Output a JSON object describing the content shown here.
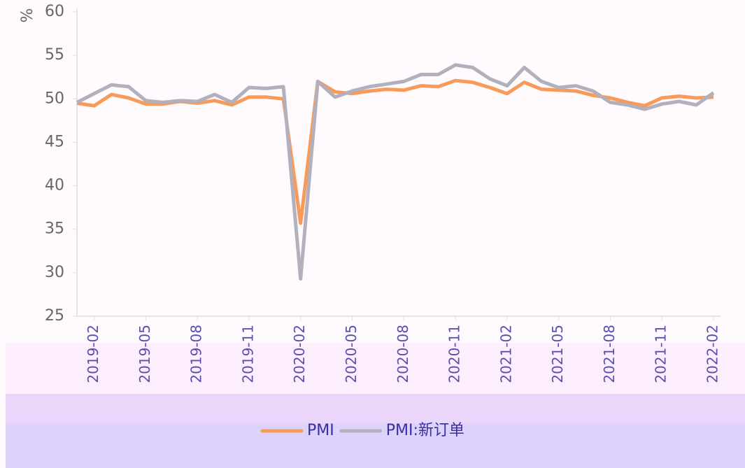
{
  "chart_data": {
    "type": "line",
    "y_label": "%",
    "categories": [
      null,
      "2019-02",
      null,
      null,
      "2019-05",
      null,
      null,
      "2019-08",
      null,
      null,
      "2019-11",
      null,
      null,
      "2020-02",
      null,
      null,
      "2020-05",
      null,
      null,
      "2020-08",
      null,
      null,
      "2020-11",
      null,
      null,
      "2021-02",
      null,
      null,
      "2021-05",
      null,
      null,
      "2021-08",
      null,
      null,
      "2021-11",
      null,
      null,
      "2022-02"
    ],
    "series": [
      {
        "name": "PMI",
        "color": "#f79a5a",
        "values": [
          49.5,
          49.2,
          50.5,
          50.1,
          49.4,
          49.4,
          49.7,
          49.5,
          49.8,
          49.3,
          50.2,
          50.2,
          50.0,
          35.7,
          52.0,
          50.8,
          50.6,
          50.9,
          51.1,
          51.0,
          51.5,
          51.4,
          52.1,
          51.9,
          51.3,
          50.6,
          51.9,
          51.1,
          51.0,
          50.9,
          50.4,
          50.1,
          49.6,
          49.2,
          50.1,
          50.3,
          50.1,
          50.2
        ]
      },
      {
        "name": "PMI:新订单",
        "color": "#b3b0bd",
        "values": [
          49.6,
          50.6,
          51.6,
          51.4,
          49.8,
          49.6,
          49.8,
          49.7,
          50.5,
          49.6,
          51.3,
          51.2,
          51.4,
          29.3,
          52.0,
          50.2,
          50.9,
          51.4,
          51.7,
          52.0,
          52.8,
          52.8,
          53.9,
          53.6,
          52.3,
          51.5,
          53.6,
          52.0,
          51.3,
          51.5,
          50.9,
          49.6,
          49.3,
          48.8,
          49.4,
          49.7,
          49.3,
          50.7
        ]
      }
    ],
    "ylim": [
      25,
      60
    ],
    "yticks": [
      25,
      30,
      35,
      40,
      45,
      50,
      55,
      60
    ],
    "grid": false,
    "legend": "bottom"
  }
}
